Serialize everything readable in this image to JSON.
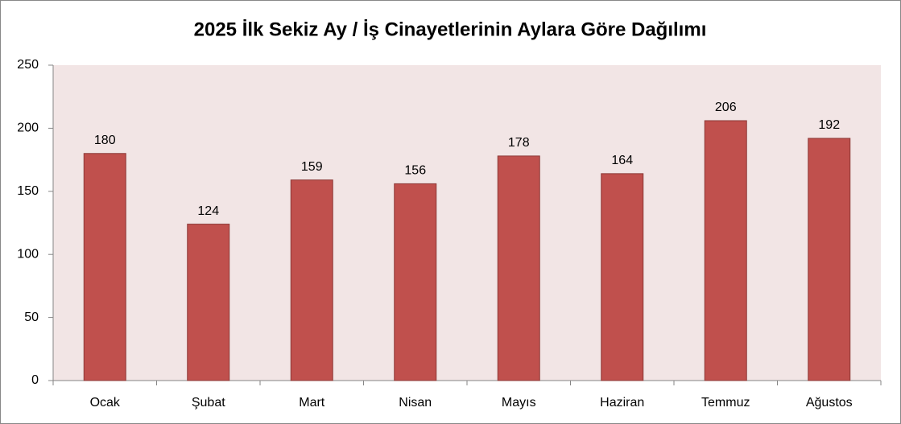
{
  "chart_data": {
    "type": "bar",
    "title": "2025 İlk Sekiz Ay / İş Cinayetlerinin Aylara Göre Dağılımı",
    "categories": [
      "Ocak",
      "Şubat",
      "Mart",
      "Nisan",
      "Mayıs",
      "Haziran",
      "Temmuz",
      "Ağustos"
    ],
    "values": [
      180,
      124,
      159,
      156,
      178,
      164,
      206,
      192
    ],
    "color": "#c0504d",
    "ylim": [
      0,
      250
    ],
    "yticks": [
      0,
      50,
      100,
      150,
      200,
      250
    ],
    "grid": false
  }
}
